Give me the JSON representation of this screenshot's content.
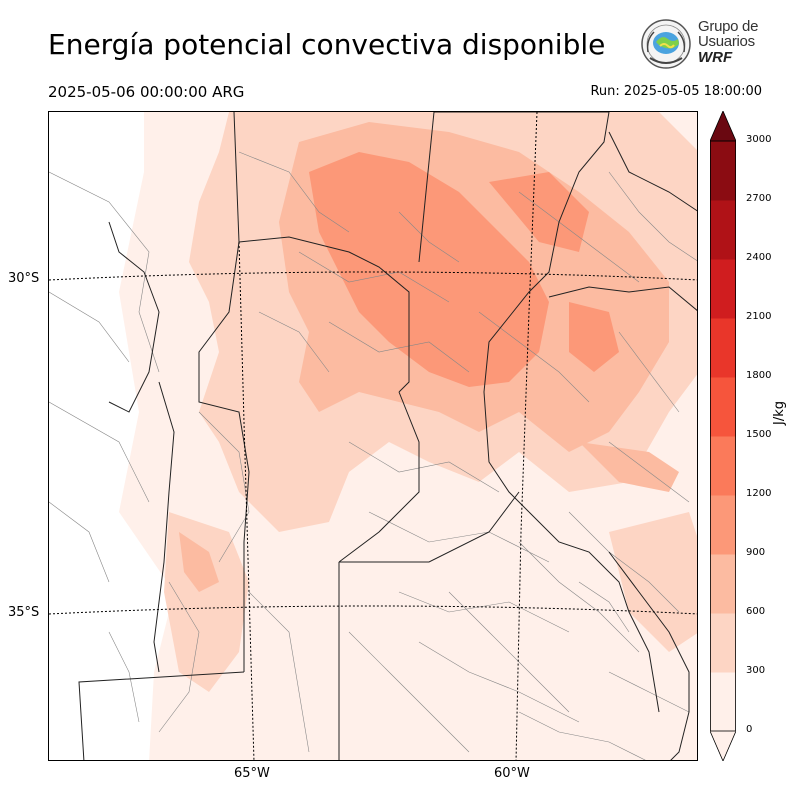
{
  "title": "Energía potencial convectiva disponible",
  "valid_time": "2025-05-06 00:00:00 ARG",
  "run_time": "Run: 2025-05-05 18:00:00",
  "logo": {
    "line1": "Grupo de",
    "line2": "Usuarios",
    "line3": "WRF"
  },
  "map": {
    "latitude_labels": [
      "30°S",
      "35°S"
    ],
    "longitude_labels": [
      "65°W",
      "60°W"
    ]
  },
  "colorbar": {
    "unit": "J/kg",
    "ticks": [
      "0",
      "300",
      "600",
      "900",
      "1200",
      "1500",
      "1800",
      "2100",
      "2400",
      "2700",
      "3000"
    ],
    "colors": [
      "#fff0ea",
      "#fdd5c4",
      "#fcbba1",
      "#fc9878",
      "#fb7a5a",
      "#f6553c",
      "#e9362a",
      "#d01d1f",
      "#b01217",
      "#8b0c12",
      "#6a0811"
    ],
    "extend": "both"
  }
}
